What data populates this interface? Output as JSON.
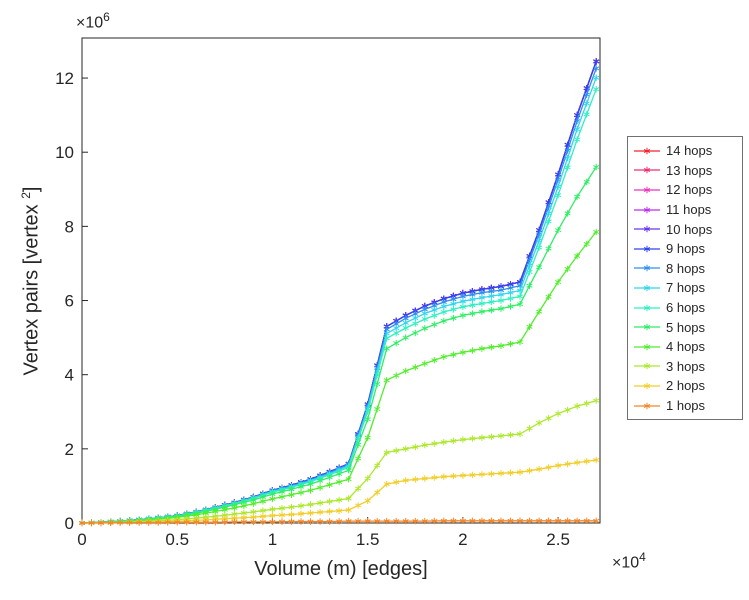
{
  "figure": {
    "xlabel": "Volume (m) [edges]",
    "ylabel": {
      "prefix": "Vertex pairs [vertex ",
      "sup": "2",
      "suffix": "]"
    },
    "x_multiplier": {
      "base": "×10",
      "exp": "4"
    },
    "y_multiplier": {
      "base": "×10",
      "exp": "6"
    }
  },
  "chart_data": {
    "type": "line",
    "marker": "*",
    "title": "",
    "xlabel": "Volume (m) [edges]",
    "ylabel": "Vertex pairs [vertex^2]",
    "x_scale_label": "x10^4 edges",
    "y_scale_label": "x10^6 vertex pairs",
    "grid": false,
    "legend_position": "right-outside",
    "xlim": [
      0,
      2.72
    ],
    "ylim": [
      0,
      13.08
    ],
    "xtick_values": [
      0,
      0.5,
      1,
      1.5,
      2,
      2.5
    ],
    "xtick_labels": [
      "0",
      "0.5",
      "1",
      "1.5",
      "2",
      "2.5"
    ],
    "ytick_values": [
      0,
      2,
      4,
      6,
      8,
      10,
      12
    ],
    "ytick_labels": [
      "0",
      "2",
      "4",
      "6",
      "8",
      "10",
      "12"
    ],
    "x": [
      0,
      0.1,
      0.2,
      0.3,
      0.4,
      0.5,
      0.6,
      0.7,
      0.8,
      0.9,
      1.0,
      1.1,
      1.2,
      1.3,
      1.4,
      1.5,
      1.6,
      1.7,
      1.8,
      1.9,
      2.0,
      2.1,
      2.2,
      2.3,
      2.4,
      2.5,
      2.6,
      2.7
    ],
    "series": [
      {
        "name": "14 hops",
        "color": "#f1252b",
        "y": [
          0,
          0.02,
          0.05,
          0.09,
          0.14,
          0.2,
          0.3,
          0.42,
          0.55,
          0.7,
          0.88,
          1.02,
          1.18,
          1.38,
          1.6,
          3.2,
          5.3,
          5.6,
          5.85,
          6.05,
          6.2,
          6.3,
          6.38,
          6.5,
          7.9,
          9.4,
          11.0,
          12.45
        ]
      },
      {
        "name": "13 hops",
        "color": "#ef2c74",
        "y": [
          0,
          0.02,
          0.05,
          0.09,
          0.14,
          0.2,
          0.3,
          0.42,
          0.55,
          0.7,
          0.88,
          1.02,
          1.18,
          1.38,
          1.6,
          3.2,
          5.3,
          5.6,
          5.85,
          6.05,
          6.2,
          6.3,
          6.38,
          6.5,
          7.9,
          9.4,
          11.0,
          12.45
        ]
      },
      {
        "name": "12 hops",
        "color": "#ee33c0",
        "y": [
          0,
          0.02,
          0.05,
          0.09,
          0.14,
          0.2,
          0.3,
          0.42,
          0.55,
          0.7,
          0.88,
          1.02,
          1.18,
          1.38,
          1.6,
          3.2,
          5.3,
          5.6,
          5.85,
          6.05,
          6.2,
          6.3,
          6.38,
          6.5,
          7.9,
          9.4,
          11.0,
          12.45
        ]
      },
      {
        "name": "11 hops",
        "color": "#bb2fee",
        "y": [
          0,
          0.02,
          0.05,
          0.09,
          0.14,
          0.2,
          0.3,
          0.42,
          0.55,
          0.7,
          0.88,
          1.02,
          1.18,
          1.38,
          1.6,
          3.2,
          5.3,
          5.6,
          5.85,
          6.05,
          6.2,
          6.3,
          6.38,
          6.5,
          7.9,
          9.4,
          11.0,
          12.45
        ]
      },
      {
        "name": "10 hops",
        "color": "#6a35f0",
        "y": [
          0,
          0.02,
          0.05,
          0.09,
          0.14,
          0.2,
          0.3,
          0.42,
          0.55,
          0.7,
          0.88,
          1.02,
          1.18,
          1.38,
          1.6,
          3.2,
          5.3,
          5.6,
          5.85,
          6.05,
          6.2,
          6.3,
          6.38,
          6.5,
          7.9,
          9.4,
          11.0,
          12.45
        ]
      },
      {
        "name": "9 hops",
        "color": "#2f45f2",
        "y": [
          0,
          0.02,
          0.05,
          0.09,
          0.14,
          0.2,
          0.3,
          0.42,
          0.55,
          0.7,
          0.88,
          1.02,
          1.18,
          1.38,
          1.6,
          3.2,
          5.3,
          5.6,
          5.85,
          6.05,
          6.2,
          6.3,
          6.38,
          6.5,
          7.9,
          9.4,
          11.0,
          12.45
        ]
      },
      {
        "name": "8 hops",
        "color": "#2f8ff0",
        "y": [
          0,
          0.02,
          0.05,
          0.09,
          0.14,
          0.2,
          0.3,
          0.41,
          0.54,
          0.69,
          0.87,
          1.0,
          1.16,
          1.36,
          1.58,
          3.15,
          5.22,
          5.52,
          5.76,
          5.96,
          6.11,
          6.21,
          6.28,
          6.4,
          7.78,
          9.26,
          10.84,
          12.26
        ]
      },
      {
        "name": "7 hops",
        "color": "#2fd6ee",
        "y": [
          0,
          0.02,
          0.05,
          0.09,
          0.14,
          0.19,
          0.29,
          0.41,
          0.53,
          0.68,
          0.85,
          0.98,
          1.14,
          1.33,
          1.54,
          3.09,
          5.11,
          5.4,
          5.65,
          5.84,
          5.98,
          6.08,
          6.16,
          6.27,
          7.62,
          9.07,
          10.62,
          12.01
        ]
      },
      {
        "name": "6 hops",
        "color": "#2ef0c0",
        "y": [
          0,
          0.02,
          0.05,
          0.08,
          0.13,
          0.19,
          0.28,
          0.39,
          0.52,
          0.66,
          0.83,
          0.96,
          1.11,
          1.3,
          1.5,
          3.01,
          4.98,
          5.26,
          5.5,
          5.69,
          5.83,
          5.92,
          6.0,
          6.11,
          7.43,
          8.84,
          10.34,
          11.7
        ]
      },
      {
        "name": "5 hops",
        "color": "#2eee66",
        "y": [
          0,
          0.02,
          0.04,
          0.08,
          0.12,
          0.18,
          0.26,
          0.37,
          0.49,
          0.62,
          0.78,
          0.91,
          1.05,
          1.23,
          1.42,
          2.8,
          4.7,
          5.0,
          5.25,
          5.45,
          5.6,
          5.7,
          5.78,
          5.9,
          6.9,
          7.9,
          8.8,
          9.6
        ]
      },
      {
        "name": "4 hops",
        "color": "#52ee2e",
        "y": [
          0,
          0.01,
          0.03,
          0.06,
          0.1,
          0.15,
          0.22,
          0.31,
          0.41,
          0.52,
          0.65,
          0.76,
          0.88,
          1.03,
          1.18,
          2.3,
          3.85,
          4.1,
          4.3,
          4.48,
          4.6,
          4.7,
          4.78,
          4.88,
          5.7,
          6.5,
          7.2,
          7.85
        ]
      },
      {
        "name": "3 hops",
        "color": "#ace82c",
        "y": [
          0,
          0.01,
          0.02,
          0.04,
          0.06,
          0.09,
          0.13,
          0.18,
          0.24,
          0.3,
          0.37,
          0.43,
          0.5,
          0.58,
          0.66,
          1.2,
          1.9,
          2.0,
          2.1,
          2.18,
          2.25,
          2.3,
          2.35,
          2.4,
          2.7,
          2.95,
          3.15,
          3.3
        ]
      },
      {
        "name": "2 hops",
        "color": "#f2ce2a",
        "y": [
          0,
          0.0,
          0.01,
          0.02,
          0.03,
          0.05,
          0.07,
          0.1,
          0.13,
          0.16,
          0.2,
          0.23,
          0.27,
          0.31,
          0.35,
          0.6,
          1.05,
          1.15,
          1.2,
          1.25,
          1.28,
          1.31,
          1.34,
          1.37,
          1.45,
          1.55,
          1.63,
          1.7
        ]
      },
      {
        "name": "1 hops",
        "color": "#f2862a",
        "y": [
          0,
          0.0,
          0.01,
          0.01,
          0.01,
          0.02,
          0.02,
          0.02,
          0.03,
          0.03,
          0.03,
          0.04,
          0.04,
          0.04,
          0.05,
          0.05,
          0.05,
          0.05,
          0.05,
          0.06,
          0.06,
          0.06,
          0.06,
          0.06,
          0.06,
          0.06,
          0.06,
          0.06
        ]
      }
    ]
  }
}
